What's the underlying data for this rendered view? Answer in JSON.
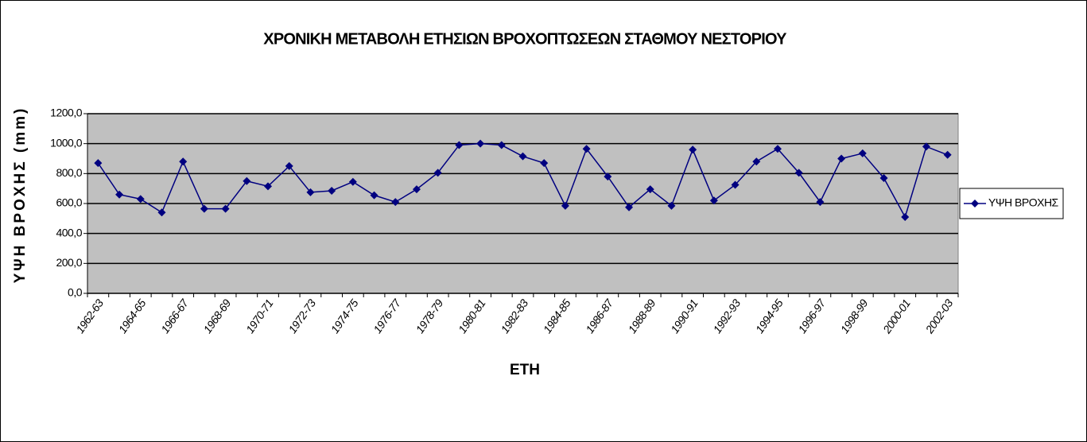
{
  "chart_data": {
    "type": "line",
    "title": "ΧΡΟΝΙΚΗ ΜΕΤΑΒΟΛΗ ΕΤΗΣΙΩΝ ΒΡΟΧΟΠΤΩΣΕΩΝ ΣΤΑΘΜΟΥ ΝΕΣΤΟΡΙΟΥ",
    "x_label": "ΕΤΗ",
    "y_label": "ΥΨΗ ΒΡΟΧΗΣ (mm)",
    "categories": [
      "1962-63",
      null,
      "1964-65",
      null,
      "1966-67",
      null,
      "1968-69",
      null,
      "1970-71",
      null,
      "1972-73",
      null,
      "1974-75",
      null,
      "1976-77",
      null,
      "1978-79",
      null,
      "1980-81",
      null,
      "1982-83",
      null,
      "1984-85",
      null,
      "1986-87",
      null,
      "1988-89",
      null,
      "1990-91",
      null,
      "1992-93",
      null,
      "1994-95",
      null,
      "1996-97",
      null,
      "1998-99",
      null,
      "2000-01",
      null,
      "2002-03"
    ],
    "series": [
      {
        "name": "ΥΨΗ ΒΡΟΧΗΣ",
        "color": "#000080",
        "values": [
          870,
          660,
          630,
          540,
          880,
          565,
          565,
          750,
          715,
          850,
          675,
          685,
          745,
          655,
          610,
          695,
          805,
          990,
          1000,
          990,
          915,
          870,
          585,
          965,
          780,
          575,
          695,
          585,
          960,
          620,
          725,
          880,
          965,
          805,
          610,
          900,
          935,
          770,
          510,
          980,
          925
        ]
      }
    ],
    "ylim": [
      0,
      1200
    ],
    "yticks": [
      {
        "value": 0,
        "label": "0,0"
      },
      {
        "value": 200,
        "label": "200,0"
      },
      {
        "value": 400,
        "label": "400,0"
      },
      {
        "value": 600,
        "label": "600,0"
      },
      {
        "value": 800,
        "label": "800,0"
      },
      {
        "value": 1000,
        "label": "1000,0"
      },
      {
        "value": 1200,
        "label": "1200,0"
      }
    ],
    "grid": true,
    "plot_background": "#c0c0c0",
    "legend": "right"
  }
}
